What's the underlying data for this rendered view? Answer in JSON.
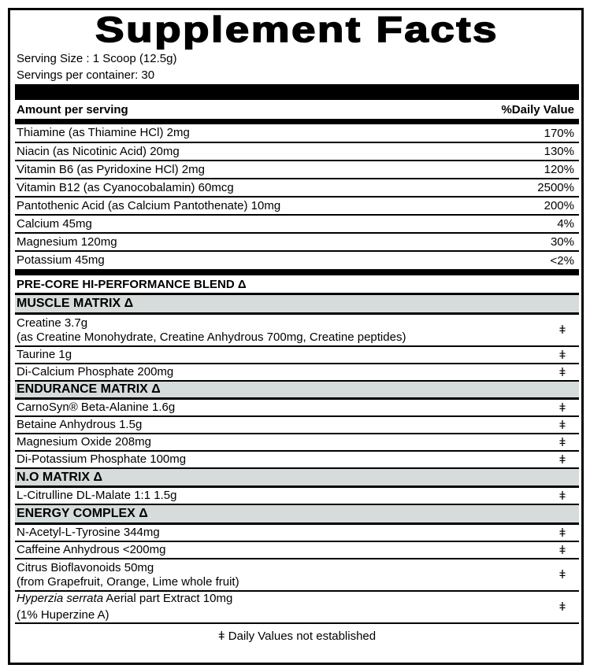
{
  "title": "Supplement Facts",
  "serving_size": "Serving Size : 1 Scoop (12.5g)",
  "servings_per_container": "Servings per container: 30",
  "header": {
    "amount": "Amount per serving",
    "dv": "%Daily Value"
  },
  "vitamins": [
    {
      "name": "Thiamine (as Thiamine HCl) 2mg",
      "dv": "170%"
    },
    {
      "name": "Niacin (as Nicotinic Acid) 20mg",
      "dv": "130%"
    },
    {
      "name": "Vitamin B6 (as Pyridoxine HCl) 2mg",
      "dv": "120%"
    },
    {
      "name": "Vitamin B12 (as Cyanocobalamin) 60mcg",
      "dv": "2500%"
    },
    {
      "name": "Pantothenic Acid (as Calcium Pantothenate) 10mg",
      "dv": "200%"
    },
    {
      "name": "Calcium 45mg",
      "dv": "4%"
    },
    {
      "name": "Magnesium 120mg",
      "dv": "30%"
    },
    {
      "name": "Potassium 45mg",
      "dv": "<2%"
    }
  ],
  "blend_title": "PRE-CORE HI-PERFORMANCE BLEND Δ",
  "dagger": "ǂ",
  "groups": {
    "muscle": {
      "title": "MUSCLE MATRIX Δ",
      "items": [
        {
          "name": "Creatine  3.7g",
          "sub": "(as Creatine Monohydrate, Creatine Anhydrous 700mg, Creatine peptides)"
        },
        {
          "name": "Taurine 1g"
        },
        {
          "name": "Di-Calcium Phosphate 200mg"
        }
      ]
    },
    "endurance": {
      "title": "ENDURANCE MATRIX Δ",
      "items": [
        {
          "name": "CarnoSyn® Beta-Alanine 1.6g"
        },
        {
          "name": "Betaine Anhydrous 1.5g"
        },
        {
          "name": "Magnesium Oxide 208mg"
        },
        {
          "name": "Di-Potassium Phosphate 100mg"
        }
      ]
    },
    "no": {
      "title": "N.O MATRIX Δ",
      "items": [
        {
          "name": "L-Citrulline DL-Malate 1:1  1.5g"
        }
      ]
    },
    "energy": {
      "title": "ENERGY COMPLEX Δ",
      "items": [
        {
          "name": "N-Acetyl-L-Tyrosine 344mg"
        },
        {
          "name": "Caffeine Anhydrous <200mg"
        },
        {
          "name": "Citrus Bioflavonoids 50mg",
          "sub": "(from Grapefruit, Orange, Lime whole fruit)"
        },
        {
          "name_italic": "Hyperzia serrata",
          "name": " Aerial part Extract 10mg",
          "sub": "(1% Huperzine A)"
        }
      ]
    }
  },
  "footer": "ǂ Daily Values not established",
  "colors": {
    "group_bg": "#d5dcdb",
    "rule": "#000000"
  }
}
